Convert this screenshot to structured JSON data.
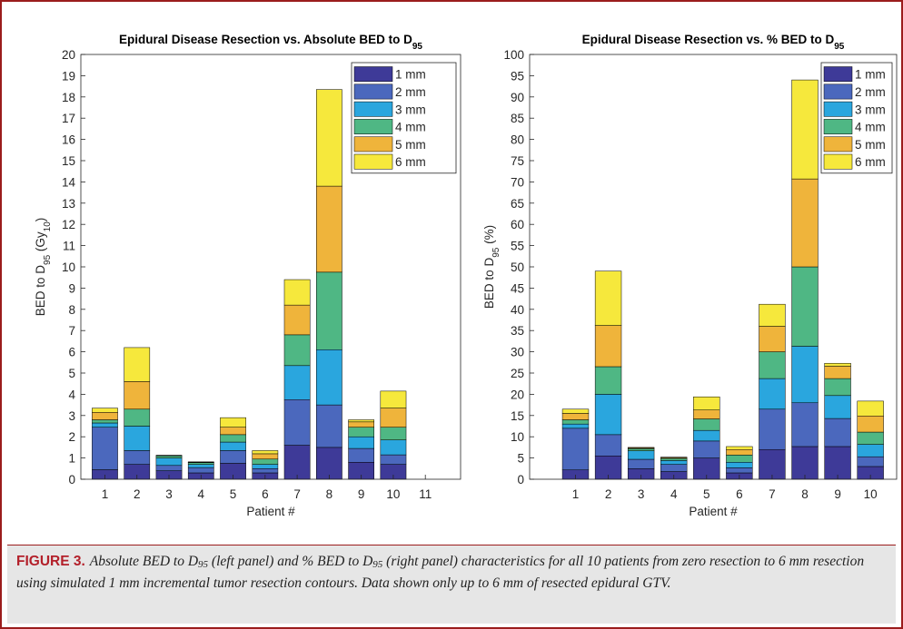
{
  "chart_data": [
    {
      "type": "bar",
      "stacked": true,
      "title": [
        {
          "text": "Epidural Disease Resection vs. Absolute BED to D"
        },
        {
          "sub": "95"
        }
      ],
      "x_label": "Patient #",
      "y_label": [
        {
          "text": "BED to D"
        },
        {
          "sub": "95"
        },
        {
          "text": "  (Gy"
        },
        {
          "sub": "10"
        },
        {
          "text": ")"
        }
      ],
      "x": [
        1,
        2,
        3,
        4,
        5,
        6,
        7,
        8,
        9,
        10
      ],
      "xlim": [
        0.25,
        12.1
      ],
      "xticks": [
        1,
        2,
        3,
        4,
        5,
        6,
        7,
        8,
        9,
        10,
        11
      ],
      "ylim": [
        0,
        20
      ],
      "yticks": [
        0,
        1,
        2,
        3,
        4,
        5,
        6,
        7,
        8,
        9,
        10,
        11,
        12,
        13,
        14,
        15,
        16,
        17,
        18,
        19,
        20
      ],
      "legend": "upper right",
      "series": [
        {
          "name": "1 mm",
          "color": "#3e3a98",
          "values": [
            0.45,
            0.7,
            0.4,
            0.3,
            0.75,
            0.3,
            1.6,
            1.5,
            0.8,
            0.7
          ]
        },
        {
          "name": "2 mm",
          "color": "#4b68bd",
          "values": [
            2.0,
            0.65,
            0.25,
            0.25,
            0.6,
            0.2,
            2.15,
            2.0,
            0.65,
            0.45
          ]
        },
        {
          "name": "3 mm",
          "color": "#2aa6de",
          "values": [
            0.2,
            1.15,
            0.35,
            0.15,
            0.4,
            0.2,
            1.6,
            2.6,
            0.55,
            0.7
          ]
        },
        {
          "name": "4 mm",
          "color": "#4fb784",
          "values": [
            0.15,
            0.8,
            0.1,
            0.08,
            0.35,
            0.25,
            1.45,
            3.65,
            0.45,
            0.6
          ]
        },
        {
          "name": "5 mm",
          "color": "#efb43b",
          "values": [
            0.35,
            1.3,
            0.02,
            0.02,
            0.35,
            0.25,
            1.4,
            4.05,
            0.25,
            0.9
          ]
        },
        {
          "name": "6 mm",
          "color": "#f6e83c",
          "values": [
            0.2,
            1.6,
            0.01,
            0.02,
            0.45,
            0.15,
            1.2,
            4.55,
            0.1,
            0.8
          ]
        }
      ]
    },
    {
      "type": "bar",
      "stacked": true,
      "title": [
        {
          "text": "Epidural Disease Resection vs. % BED to D"
        },
        {
          "sub": "95"
        }
      ],
      "x_label": "Patient #",
      "y_label": [
        {
          "text": "BED to D"
        },
        {
          "sub": "95"
        },
        {
          "text": "  (%)"
        }
      ],
      "x": [
        1,
        2,
        3,
        4,
        5,
        6,
        7,
        8,
        9,
        10
      ],
      "xlim": [
        -0.4,
        10.8
      ],
      "xticks": [
        1,
        2,
        3,
        4,
        5,
        6,
        7,
        8,
        9,
        10
      ],
      "ylim": [
        0,
        100
      ],
      "yticks": [
        0,
        5,
        10,
        15,
        20,
        25,
        30,
        35,
        40,
        45,
        50,
        55,
        60,
        65,
        70,
        75,
        80,
        85,
        90,
        95,
        100
      ],
      "legend": "upper right",
      "series": [
        {
          "name": "1 mm",
          "color": "#3e3a98",
          "values": [
            2.2,
            5.5,
            2.5,
            1.8,
            5,
            1.5,
            7,
            7.7,
            7.7,
            3
          ]
        },
        {
          "name": "2 mm",
          "color": "#4b68bd",
          "values": [
            9.8,
            5,
            2.2,
            1.7,
            4,
            1.2,
            9.5,
            10.3,
            6.6,
            2.3
          ]
        },
        {
          "name": "3 mm",
          "color": "#2aa6de",
          "values": [
            1,
            9.5,
            2,
            0.9,
            2.5,
            1.3,
            7.2,
            13.3,
            5.4,
            2.9
          ]
        },
        {
          "name": "4 mm",
          "color": "#4fb784",
          "values": [
            1,
            6.5,
            0.5,
            0.5,
            2.7,
            1.7,
            6.3,
            18.7,
            4,
            2.9
          ]
        },
        {
          "name": "5 mm",
          "color": "#efb43b",
          "values": [
            1.5,
            9.7,
            0.2,
            0.2,
            2.1,
            1.3,
            6,
            20.7,
            2.9,
            3.8
          ]
        },
        {
          "name": "6 mm",
          "color": "#f6e83c",
          "values": [
            1,
            12.8,
            0.1,
            0.1,
            3.1,
            0.7,
            5.2,
            23.3,
            0.7,
            3.5
          ]
        }
      ]
    }
  ],
  "caption": {
    "label": "FIGURE 3.",
    "text": [
      {
        "text": "Absolute BED to D"
      },
      {
        "sub": "95"
      },
      {
        "text": " (left panel) and % BED to D"
      },
      {
        "sub": "95"
      },
      {
        "text": " (right panel) characteristics for all 10 patients from zero resection to 6 mm resection using simulated 1 mm incremental tumor resection contours. Data shown only up to 6 mm of resected epidural GTV."
      }
    ]
  }
}
